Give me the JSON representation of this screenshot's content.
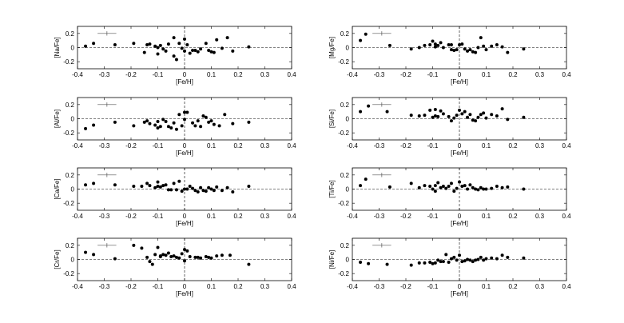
{
  "figure": {
    "xlabel": "[Fe/H]",
    "xlim": [
      -0.4,
      0.4
    ],
    "ylim": [
      -0.3,
      0.3
    ],
    "xticks": [
      "-0.4",
      "-0.3",
      "-0.2",
      "-0.1",
      "0",
      "0.1",
      "0.2",
      "0.3",
      "0.4"
    ],
    "yticks": [
      "-0.2",
      "0",
      "0.2"
    ],
    "errorbar": {
      "x": -0.29,
      "y": 0.2,
      "dx": 0.035,
      "dy": 0.03
    }
  },
  "chart_data": [
    {
      "type": "scatter",
      "ylabel": "[Na/Fe]",
      "xlabel": "[Fe/H]",
      "xlim": [
        -0.4,
        0.4
      ],
      "ylim": [
        -0.3,
        0.3
      ],
      "x": [
        -0.37,
        -0.34,
        -0.26,
        -0.19,
        -0.15,
        -0.14,
        -0.13,
        -0.11,
        -0.1,
        -0.1,
        -0.09,
        -0.08,
        -0.07,
        -0.06,
        -0.04,
        -0.04,
        -0.03,
        -0.02,
        -0.01,
        0.0,
        0.0,
        0.01,
        0.02,
        0.03,
        0.04,
        0.05,
        0.06,
        0.08,
        0.09,
        0.1,
        0.11,
        0.12,
        0.14,
        0.16,
        0.18,
        0.24
      ],
      "y": [
        0.02,
        0.06,
        0.04,
        0.06,
        -0.07,
        0.04,
        0.05,
        0.02,
        0.0,
        -0.09,
        0.03,
        -0.02,
        -0.05,
        0.05,
        -0.12,
        0.14,
        -0.17,
        0.06,
        -0.01,
        0.12,
        -0.05,
        0.04,
        -0.08,
        -0.04,
        -0.04,
        -0.06,
        -0.02,
        0.06,
        -0.04,
        -0.06,
        -0.07,
        0.11,
        -0.01,
        0.14,
        -0.05,
        0.01
      ]
    },
    {
      "type": "scatter",
      "ylabel": "[Mg/Fe]",
      "xlabel": "[Fe/H]",
      "xlim": [
        -0.4,
        0.4
      ],
      "ylim": [
        -0.3,
        0.3
      ],
      "x": [
        -0.37,
        -0.35,
        -0.26,
        -0.18,
        -0.15,
        -0.13,
        -0.11,
        -0.1,
        -0.09,
        -0.09,
        -0.08,
        -0.07,
        -0.06,
        -0.04,
        -0.03,
        -0.03,
        -0.02,
        -0.01,
        0.0,
        0.01,
        0.02,
        0.03,
        0.04,
        0.05,
        0.06,
        0.07,
        0.08,
        0.09,
        0.1,
        0.12,
        0.14,
        0.16,
        0.18,
        0.24
      ],
      "y": [
        0.1,
        0.19,
        0.03,
        -0.02,
        0.0,
        0.03,
        0.04,
        0.09,
        0.05,
        0.01,
        0.03,
        0.07,
        0.0,
        0.04,
        -0.03,
        0.04,
        -0.04,
        -0.03,
        0.04,
        0.05,
        -0.02,
        -0.05,
        -0.03,
        -0.06,
        -0.07,
        0.0,
        0.14,
        0.02,
        -0.03,
        0.02,
        0.04,
        0.01,
        -0.07,
        -0.02
      ]
    },
    {
      "type": "scatter",
      "ylabel": "[Al/Fe]",
      "xlabel": "[Fe/H]",
      "xlim": [
        -0.4,
        0.4
      ],
      "ylim": [
        -0.3,
        0.3
      ],
      "x": [
        -0.37,
        -0.34,
        -0.26,
        -0.19,
        -0.15,
        -0.14,
        -0.13,
        -0.11,
        -0.1,
        -0.1,
        -0.09,
        -0.08,
        -0.07,
        -0.06,
        -0.05,
        -0.04,
        -0.03,
        -0.02,
        -0.01,
        0.0,
        0.0,
        0.01,
        0.03,
        0.04,
        0.05,
        0.06,
        0.07,
        0.08,
        0.09,
        0.1,
        0.11,
        0.13,
        0.15,
        0.18,
        0.24
      ],
      "y": [
        -0.14,
        -0.09,
        -0.05,
        -0.1,
        -0.05,
        -0.03,
        -0.07,
        -0.09,
        -0.04,
        -0.13,
        -0.11,
        -0.01,
        -0.04,
        -0.11,
        -0.13,
        -0.06,
        -0.15,
        0.06,
        -0.1,
        0.09,
        -0.01,
        0.09,
        -0.06,
        -0.1,
        -0.03,
        -0.11,
        0.04,
        0.02,
        -0.05,
        -0.03,
        -0.08,
        -0.1,
        0.06,
        -0.07,
        -0.05
      ]
    },
    {
      "type": "scatter",
      "ylabel": "[Si/Fe]",
      "xlabel": "[Fe/H]",
      "xlim": [
        -0.4,
        0.4
      ],
      "ylim": [
        -0.3,
        0.3
      ],
      "x": [
        -0.37,
        -0.34,
        -0.27,
        -0.18,
        -0.15,
        -0.13,
        -0.11,
        -0.1,
        -0.09,
        -0.09,
        -0.08,
        -0.07,
        -0.06,
        -0.04,
        -0.03,
        -0.02,
        -0.01,
        0.0,
        0.01,
        0.02,
        0.03,
        0.04,
        0.05,
        0.06,
        0.07,
        0.08,
        0.09,
        0.1,
        0.12,
        0.14,
        0.16,
        0.18,
        0.24
      ],
      "y": [
        0.1,
        0.18,
        0.1,
        0.05,
        0.04,
        0.05,
        0.12,
        0.02,
        0.13,
        0.04,
        0.03,
        0.11,
        0.07,
        0.03,
        -0.03,
        0.01,
        0.05,
        0.12,
        0.07,
        0.1,
        0.02,
        0.06,
        -0.02,
        -0.03,
        0.02,
        0.06,
        0.08,
        0.01,
        0.06,
        0.04,
        0.14,
        -0.01,
        0.02
      ]
    },
    {
      "type": "scatter",
      "ylabel": "[Ca/Fe]",
      "xlabel": "[Fe/H]",
      "xlim": [
        -0.4,
        0.4
      ],
      "ylim": [
        -0.3,
        0.3
      ],
      "x": [
        -0.37,
        -0.34,
        -0.26,
        -0.19,
        -0.16,
        -0.14,
        -0.13,
        -0.11,
        -0.1,
        -0.1,
        -0.09,
        -0.08,
        -0.07,
        -0.06,
        -0.05,
        -0.04,
        -0.03,
        -0.02,
        -0.01,
        0.0,
        0.01,
        0.02,
        0.03,
        0.04,
        0.05,
        0.06,
        0.07,
        0.08,
        0.09,
        0.1,
        0.11,
        0.12,
        0.14,
        0.16,
        0.18,
        0.24
      ],
      "y": [
        0.06,
        0.08,
        0.06,
        0.04,
        0.04,
        0.08,
        0.05,
        0.02,
        0.1,
        0.04,
        0.03,
        0.05,
        0.06,
        -0.01,
        -0.01,
        0.08,
        -0.01,
        0.11,
        -0.03,
        0.0,
        0.0,
        0.04,
        0.01,
        -0.02,
        -0.04,
        0.02,
        -0.02,
        -0.03,
        0.02,
        0.0,
        -0.02,
        0.03,
        -0.02,
        0.02,
        -0.04,
        0.04
      ]
    },
    {
      "type": "scatter",
      "ylabel": "[Ti/Fe]",
      "xlabel": "[Fe/H]",
      "xlim": [
        -0.4,
        0.4
      ],
      "ylim": [
        -0.3,
        0.3
      ],
      "x": [
        -0.37,
        -0.35,
        -0.26,
        -0.18,
        -0.15,
        -0.13,
        -0.11,
        -0.1,
        -0.09,
        -0.09,
        -0.08,
        -0.07,
        -0.06,
        -0.05,
        -0.04,
        -0.03,
        -0.02,
        -0.01,
        0.0,
        0.01,
        0.02,
        0.03,
        0.04,
        0.05,
        0.06,
        0.07,
        0.08,
        0.09,
        0.1,
        0.12,
        0.14,
        0.16,
        0.18,
        0.24
      ],
      "y": [
        0.05,
        0.14,
        0.03,
        0.08,
        0.02,
        0.05,
        0.04,
        0.0,
        0.05,
        -0.03,
        0.09,
        0.02,
        0.04,
        0.01,
        0.04,
        0.08,
        -0.03,
        0.01,
        0.1,
        0.04,
        0.05,
        0.0,
        0.06,
        0.02,
        0.0,
        -0.01,
        0.02,
        0.0,
        0.0,
        0.01,
        0.04,
        0.02,
        0.03,
        0.0
      ]
    },
    {
      "type": "scatter",
      "ylabel": "[Cr/Fe]",
      "xlabel": "[Fe/H]",
      "xlim": [
        -0.4,
        0.4
      ],
      "ylim": [
        -0.3,
        0.3
      ],
      "x": [
        -0.37,
        -0.34,
        -0.26,
        -0.19,
        -0.16,
        -0.14,
        -0.13,
        -0.12,
        -0.11,
        -0.1,
        -0.09,
        -0.09,
        -0.08,
        -0.07,
        -0.06,
        -0.05,
        -0.04,
        -0.03,
        -0.02,
        -0.01,
        0.0,
        0.0,
        0.01,
        0.02,
        0.04,
        0.05,
        0.06,
        0.08,
        0.09,
        0.1,
        0.12,
        0.14,
        0.17,
        0.24
      ],
      "y": [
        0.1,
        0.07,
        0.01,
        0.2,
        0.16,
        0.03,
        -0.03,
        -0.07,
        0.07,
        0.17,
        0.04,
        0.05,
        0.07,
        0.06,
        0.09,
        0.04,
        0.05,
        0.03,
        0.02,
        0.08,
        0.14,
        -0.02,
        0.12,
        0.04,
        0.03,
        0.03,
        0.02,
        0.04,
        0.03,
        0.02,
        0.05,
        0.06,
        0.06,
        -0.07
      ]
    },
    {
      "type": "scatter",
      "ylabel": "[Ni/Fe]",
      "xlabel": "[Fe/H]",
      "xlim": [
        -0.4,
        0.4
      ],
      "ylim": [
        -0.3,
        0.3
      ],
      "x": [
        -0.37,
        -0.34,
        -0.27,
        -0.18,
        -0.15,
        -0.13,
        -0.11,
        -0.1,
        -0.09,
        -0.08,
        -0.07,
        -0.06,
        -0.05,
        -0.04,
        -0.03,
        -0.02,
        -0.01,
        0.0,
        0.01,
        0.02,
        0.03,
        0.04,
        0.05,
        0.06,
        0.07,
        0.08,
        0.09,
        0.1,
        0.12,
        0.14,
        0.16,
        0.18,
        0.24
      ],
      "y": [
        -0.04,
        -0.06,
        -0.07,
        -0.08,
        -0.05,
        -0.05,
        -0.04,
        -0.06,
        -0.05,
        -0.01,
        -0.03,
        -0.03,
        0.07,
        -0.04,
        0.01,
        0.03,
        -0.01,
        0.06,
        -0.03,
        -0.02,
        0.0,
        -0.01,
        -0.03,
        -0.01,
        0.0,
        0.03,
        -0.01,
        0.01,
        0.02,
        0.01,
        0.06,
        0.03,
        0.02
      ]
    }
  ]
}
